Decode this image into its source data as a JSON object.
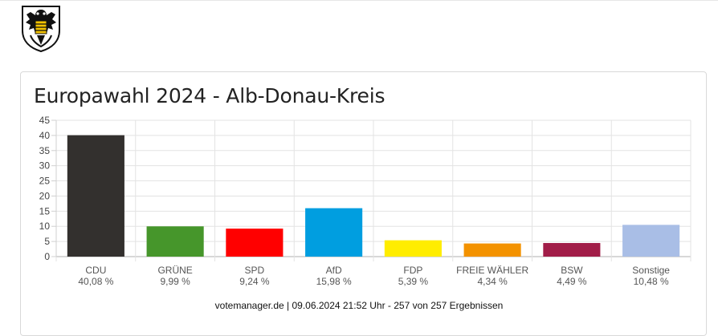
{
  "page": {
    "title": "Europawahl 2024 - Alb-Donau-Kreis",
    "footer": "votemanager.de | 09.06.2024 21:52 Uhr - 257 von 257 Ergebnissen",
    "logo_icon": "coat-of-arms-icon"
  },
  "chart_data": {
    "type": "bar",
    "title": "Europawahl 2024 - Alb-Donau-Kreis",
    "xlabel": "",
    "ylabel": "",
    "ylim": [
      0,
      45
    ],
    "yticks": [
      0,
      5,
      10,
      15,
      20,
      25,
      30,
      35,
      40,
      45
    ],
    "grid": true,
    "legend": "none",
    "categories": [
      "CDU",
      "GRÜNE",
      "SPD",
      "AfD",
      "FDP",
      "FREIE WÄHLER",
      "BSW",
      "Sonstige"
    ],
    "values": [
      40.08,
      9.99,
      9.24,
      15.98,
      5.39,
      4.34,
      4.49,
      10.48
    ],
    "value_labels": [
      "40,08 %",
      "9,99 %",
      "9,24 %",
      "15,98 %",
      "5,39 %",
      "4,34 %",
      "4,49 %",
      "10,48 %"
    ],
    "colors": [
      "#33302e",
      "#46962b",
      "#ff0000",
      "#009ee0",
      "#ffed00",
      "#f39200",
      "#a11d48",
      "#a9bee6"
    ]
  }
}
